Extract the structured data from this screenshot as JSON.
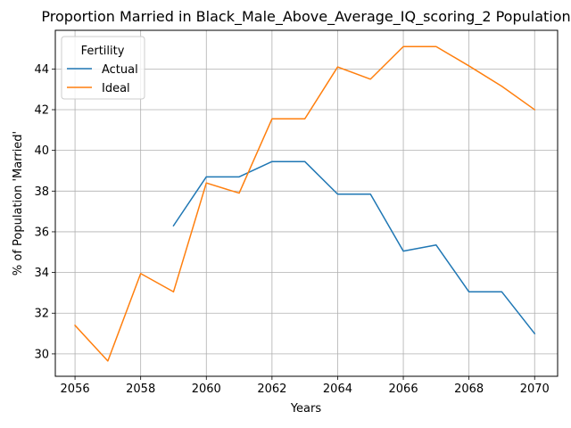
{
  "chart_data": {
    "type": "line",
    "title": "Proportion Married in Black_Male_Above_Average_IQ_scoring_2 Population",
    "xlabel": "Years",
    "ylabel": "% of Population 'Married'",
    "xlim": [
      2055.4,
      2070.7
    ],
    "ylim": [
      28.9,
      45.9
    ],
    "xticks": [
      2056,
      2058,
      2060,
      2062,
      2064,
      2066,
      2068,
      2070
    ],
    "yticks": [
      30,
      32,
      34,
      36,
      38,
      40,
      42,
      44
    ],
    "grid": true,
    "legend": {
      "title": "Fertility",
      "placement": "top-left"
    },
    "series": [
      {
        "name": "Actual",
        "color": "#1f77b4",
        "x": [
          2059,
          2060,
          2061,
          2062,
          2063,
          2064,
          2065,
          2066,
          2067,
          2068,
          2069,
          2070
        ],
        "values": [
          36.3,
          38.7,
          38.7,
          39.45,
          39.45,
          37.85,
          37.85,
          35.05,
          35.35,
          33.05,
          33.05,
          31.0
        ]
      },
      {
        "name": "Ideal",
        "color": "#ff7f0e",
        "x": [
          2056,
          2057,
          2058,
          2059,
          2060,
          2061,
          2062,
          2063,
          2064,
          2065,
          2066,
          2067,
          2068,
          2069,
          2070
        ],
        "values": [
          31.4,
          29.65,
          33.95,
          33.05,
          38.4,
          37.9,
          41.55,
          41.55,
          44.1,
          43.5,
          45.1,
          45.1,
          44.15,
          43.15,
          42.0
        ]
      }
    ]
  }
}
